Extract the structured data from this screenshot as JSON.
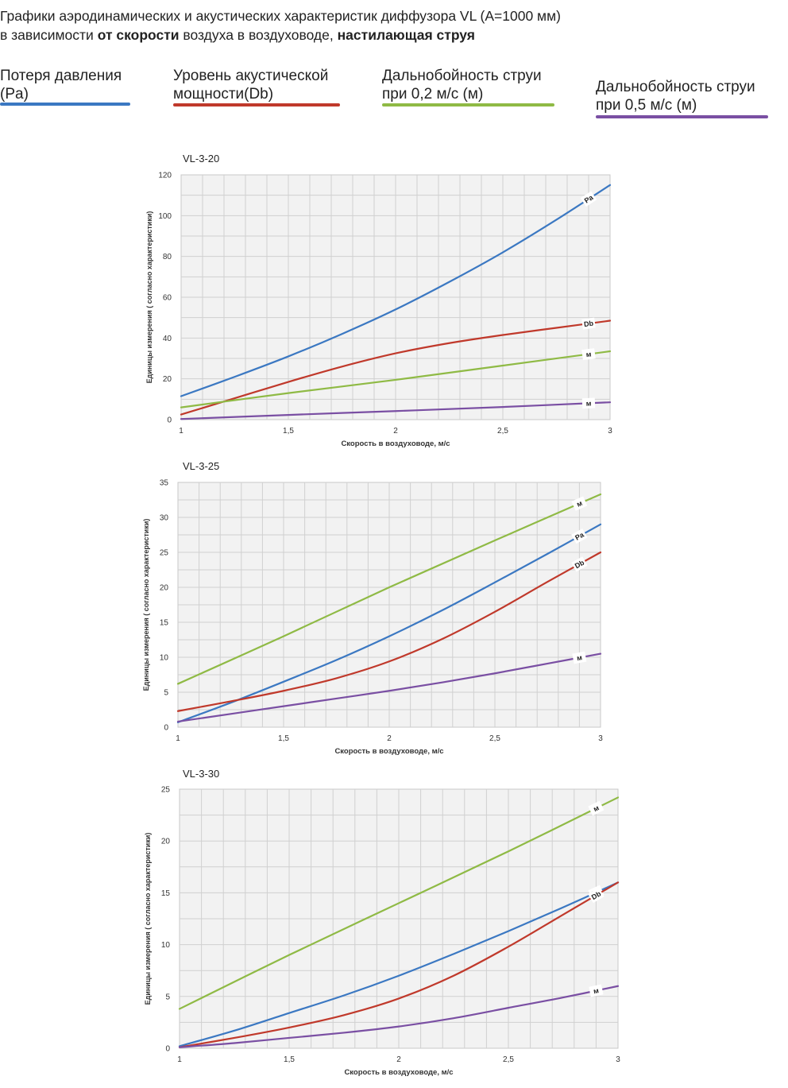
{
  "header": {
    "line1": "Графики аэродинамических и акустических характеристик  диффузора VL (A=1000 мм)",
    "line2_a": "в зависимости ",
    "line2_b": "от скорости",
    "line2_c": " воздуха в воздуховоде, ",
    "line2_d": "настилающая струя"
  },
  "legend": [
    {
      "line1": "Потеря давления",
      "line2": "(Pa)",
      "color": "#3b78c2"
    },
    {
      "line1": "Уровень акустической",
      "line2": "мощности(Db)",
      "color": "#c0392b"
    },
    {
      "line1": "Дальнобойность струи",
      "line2": "при 0,2 м/с (м)",
      "color": "#8fba45"
    },
    {
      "line1": "Дальнобойность струи",
      "line2": "при 0,5 м/с (м)",
      "color": "#7a4fa3"
    }
  ],
  "chart_data": [
    {
      "type": "line",
      "title": "VL-3-20",
      "xlabel": "Скорость в воздуховоде, м/с",
      "ylabel": "Единицы измерения ( согласно характеристики)",
      "xlim": [
        1,
        3
      ],
      "ylim": [
        0,
        120
      ],
      "xticks": [
        "1",
        "1,5",
        "2",
        "2,5",
        "3"
      ],
      "yticks": [
        "0",
        "20",
        "40",
        "60",
        "80",
        "100",
        "120"
      ],
      "grid": true,
      "series": [
        {
          "name": "Pa",
          "label": "Pa",
          "color": "#3b78c2",
          "x": [
            1,
            1.25,
            1.5,
            1.75,
            2,
            2.25,
            2.5,
            2.75,
            3
          ],
          "y": [
            11.5,
            21,
            31,
            42,
            54,
            67.5,
            82,
            98,
            115
          ]
        },
        {
          "name": "Db",
          "label": "Db",
          "color": "#c0392b",
          "x": [
            1,
            1.25,
            1.5,
            1.75,
            2,
            2.25,
            2.5,
            2.75,
            3
          ],
          "y": [
            2.5,
            10.5,
            18.5,
            26,
            32.5,
            37.5,
            41.5,
            45,
            48.5
          ]
        },
        {
          "name": "м (0,2 м/с)",
          "label": "м",
          "color": "#8fba45",
          "x": [
            1,
            1.5,
            2,
            2.5,
            3
          ],
          "y": [
            6,
            13,
            19.5,
            26.5,
            33.5
          ]
        },
        {
          "name": "м (0,5 м/с)",
          "label": "м",
          "color": "#7a4fa3",
          "x": [
            1,
            1.5,
            2,
            2.5,
            3
          ],
          "y": [
            0.3,
            2.3,
            4.2,
            6.2,
            8.5
          ]
        }
      ]
    },
    {
      "type": "line",
      "title": "VL-3-25",
      "xlabel": "Скорость в воздуховоде, м/с",
      "ylabel": "Единицы измерения ( согласно характеристики)",
      "xlim": [
        1,
        3
      ],
      "ylim": [
        0,
        35
      ],
      "xticks": [
        "1",
        "1,5",
        "2",
        "2,5",
        "3"
      ],
      "yticks": [
        "0",
        "5",
        "10",
        "15",
        "20",
        "25",
        "30",
        "35"
      ],
      "grid": true,
      "series": [
        {
          "name": "м (0,2 м/с)",
          "label": "м",
          "color": "#8fba45",
          "x": [
            1,
            1.5,
            2,
            2.5,
            3
          ],
          "y": [
            6.2,
            13,
            20,
            26.7,
            33.3
          ]
        },
        {
          "name": "Pa",
          "label": "Pa",
          "color": "#3b78c2",
          "x": [
            1,
            1.25,
            1.5,
            1.75,
            2,
            2.25,
            2.5,
            2.75,
            3
          ],
          "y": [
            0.7,
            3.5,
            6.5,
            9.6,
            13,
            16.7,
            20.7,
            24.8,
            29
          ]
        },
        {
          "name": "Db",
          "label": "Db",
          "color": "#c0392b",
          "x": [
            1,
            1.25,
            1.5,
            1.75,
            2,
            2.25,
            2.5,
            2.75,
            3
          ],
          "y": [
            2.3,
            3.7,
            5.2,
            7,
            9.4,
            12.6,
            16.5,
            20.8,
            25
          ]
        },
        {
          "name": "м (0,5 м/с)",
          "label": "м",
          "color": "#7a4fa3",
          "x": [
            1,
            1.25,
            1.5,
            1.75,
            2,
            2.25,
            2.5,
            2.75,
            3
          ],
          "y": [
            0.8,
            1.9,
            3,
            4.1,
            5.2,
            6.4,
            7.7,
            9.1,
            10.5
          ]
        }
      ]
    },
    {
      "type": "line",
      "title": "VL-3-30",
      "xlabel": "Скорость в воздуховоде, м/с",
      "ylabel": "Единицы измерения ( согласно характеристики)",
      "xlim": [
        1,
        3
      ],
      "ylim": [
        0,
        25
      ],
      "xticks": [
        "1",
        "1,5",
        "2",
        "2,5",
        "3"
      ],
      "yticks": [
        "0",
        "5",
        "10",
        "15",
        "20",
        "25"
      ],
      "grid": true,
      "series": [
        {
          "name": "м (0,2 м/с)",
          "label": "м",
          "color": "#8fba45",
          "x": [
            1,
            1.5,
            2,
            2.5,
            3
          ],
          "y": [
            3.8,
            9,
            14,
            19,
            24.2
          ]
        },
        {
          "name": "Pa",
          "label": "Pa",
          "color": "#3b78c2",
          "x": [
            1,
            1.25,
            1.5,
            1.75,
            2,
            2.25,
            2.5,
            2.75,
            3
          ],
          "y": [
            0.2,
            1.7,
            3.4,
            5.1,
            7,
            9.1,
            11.3,
            13.6,
            16
          ]
        },
        {
          "name": "Db",
          "label": "Db",
          "color": "#c0392b",
          "x": [
            1,
            1.25,
            1.5,
            1.75,
            2,
            2.25,
            2.5,
            2.75,
            3
          ],
          "y": [
            0.1,
            1,
            2,
            3.2,
            4.8,
            7,
            9.8,
            12.9,
            16
          ]
        },
        {
          "name": "м (0,5 м/с)",
          "label": "м",
          "color": "#7a4fa3",
          "x": [
            1,
            1.25,
            1.5,
            1.75,
            2,
            2.25,
            2.5,
            2.75,
            3
          ],
          "y": [
            0.1,
            0.5,
            1,
            1.5,
            2.1,
            2.9,
            3.9,
            4.9,
            6
          ]
        }
      ]
    }
  ]
}
